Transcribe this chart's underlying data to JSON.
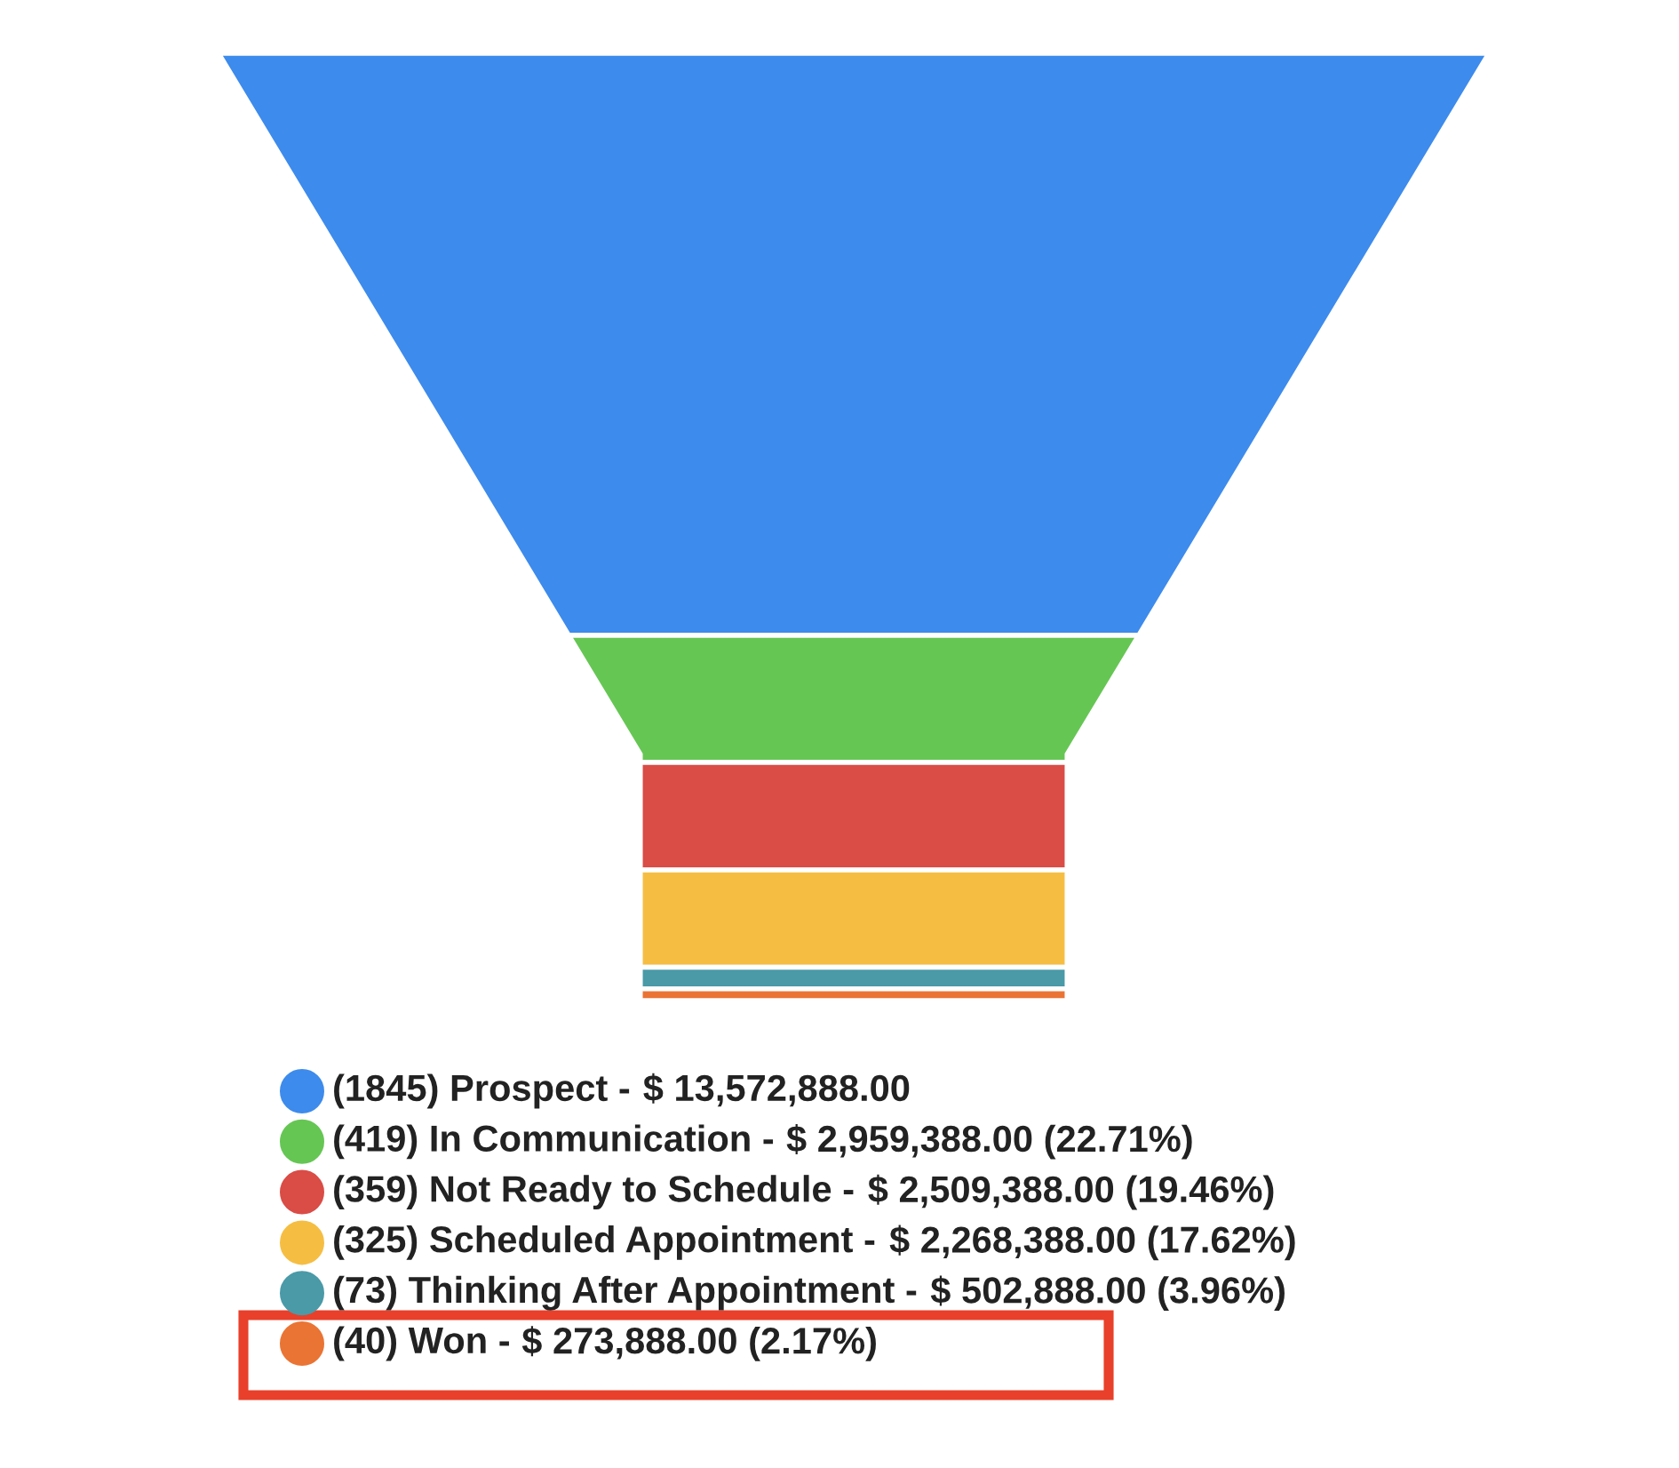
{
  "chart_data": {
    "type": "other",
    "categories": [
      "(1845) Prospect -",
      "(419) In Communication -",
      "(359) Not Ready to Schedule -",
      "(325) Scheduled Appointment -",
      "(73) Thinking After Appointment -",
      "(40) Won -"
    ],
    "values": [
      13572888,
      2959388,
      2509388,
      2268388,
      502888,
      273888
    ],
    "value_labels": [
      "$ 13,572,888.00",
      "$ 2,959,388.00 (22.71%)",
      "$ 2,509,388.00 (19.46%)",
      "$ 2,268,388.00 (17.62%)",
      "$ 502,888.00 (3.96%)",
      "$ 273,888.00 (2.17%)"
    ],
    "colors": [
      "#3d8bec",
      "#66c654",
      "#da4c46",
      "#f5be43",
      "#4a9aa8",
      "#ea7434"
    ]
  }
}
